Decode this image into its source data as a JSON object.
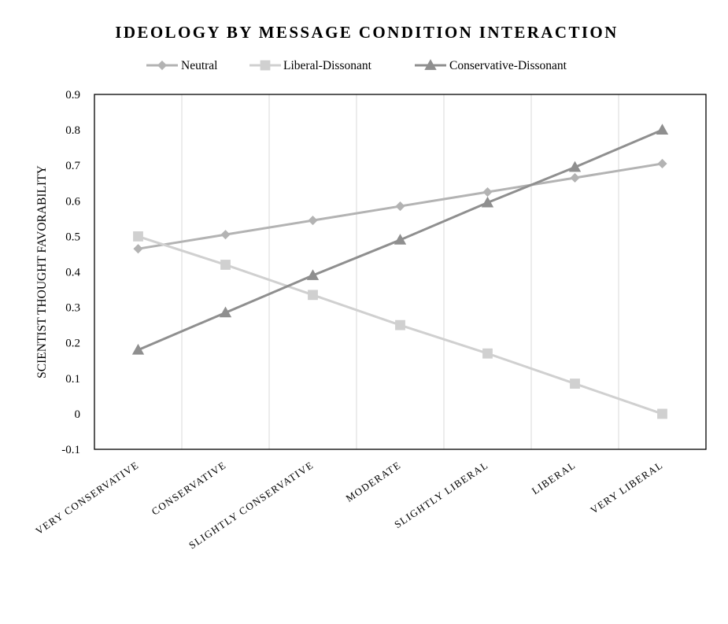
{
  "chart_data": {
    "type": "line",
    "title": "IDEOLOGY BY MESSAGE CONDITION INTERACTION",
    "xlabel": "",
    "ylabel": "SCIENTIST THOUGHT FAVORABILITY",
    "categories": [
      "VERY CONSERVATIVE",
      "CONSERVATIVE",
      "SLIGHTLY CONSERVATIVE",
      "MODERATE",
      "SLIGHTLY LIBERAL",
      "LIBERAL",
      "VERY LIBERAL"
    ],
    "ylim": [
      -0.1,
      0.9
    ],
    "yticks": [
      "-0.1",
      "0",
      "0.1",
      "0.2",
      "0.3",
      "0.4",
      "0.5",
      "0.6",
      "0.7",
      "0.8",
      "0.9"
    ],
    "grid": "vertical",
    "legend": "top-center",
    "series": [
      {
        "name": "Neutral",
        "marker": "diamond",
        "color": "#b3b3b3",
        "values": [
          0.465,
          0.505,
          0.545,
          0.585,
          0.625,
          0.665,
          0.705
        ]
      },
      {
        "name": "Liberal-Dissonant",
        "marker": "square",
        "color": "#d0d0d0",
        "values": [
          0.5,
          0.42,
          0.335,
          0.25,
          0.17,
          0.085,
          0.0
        ]
      },
      {
        "name": "Conservative-Dissonant",
        "marker": "triangle",
        "color": "#8f8f8f",
        "values": [
          0.18,
          0.285,
          0.39,
          0.49,
          0.595,
          0.695,
          0.8
        ]
      }
    ]
  }
}
